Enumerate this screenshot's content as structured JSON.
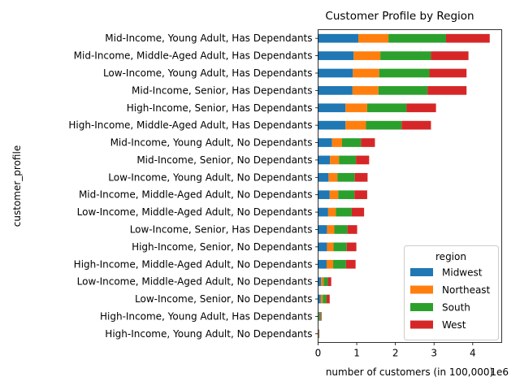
{
  "chart_data": {
    "type": "bar",
    "orientation": "horizontal",
    "stacked": true,
    "title": "Customer Profile by Region",
    "xlabel": "number of customers (in 100,000)",
    "ylabel": "customer_profile",
    "x_offset_label": "1e6",
    "xlim": [
      0,
      4.75
    ],
    "xticks": [
      0,
      1,
      2,
      3,
      4
    ],
    "grid": false,
    "legend": {
      "title": "region",
      "placement": "lower-right"
    },
    "categories": [
      "Mid-Income, Young Adult, Has Dependants",
      "Mid-Income, Middle-Aged Adult, Has Dependants",
      "Low-Income, Young Adult, Has Dependants",
      "Mid-Income, Senior, Has Dependants",
      "High-Income, Senior, Has Dependants",
      "High-Income, Middle-Aged Adult, Has Dependants",
      "Mid-Income, Young Adult, No Dependants",
      "Mid-Income, Senior, No Dependants",
      "Low-Income, Young Adult, No Dependants",
      "Mid-Income, Middle-Aged Adult, No Dependants",
      "Low-Income, Middle-Aged Adult, No Dependants",
      "Low-Income, Senior, Has Dependants",
      "High-Income, Senior, No Dependants",
      "High-Income, Middle-Aged Adult, No Dependants",
      "Low-Income, Middle-Aged Adult, No Dependants",
      "Low-Income, Senior, No Dependants",
      "High-Income, Young Adult, Has Dependants",
      "High-Income, Young Adult, No Dependants"
    ],
    "series": [
      {
        "name": "Midwest",
        "color": "#1f77b4",
        "values": [
          1.04,
          0.92,
          0.9,
          0.89,
          0.71,
          0.71,
          0.36,
          0.31,
          0.27,
          0.3,
          0.26,
          0.23,
          0.23,
          0.22,
          0.08,
          0.07,
          0.02,
          0.01
        ]
      },
      {
        "name": "Northeast",
        "color": "#ff7f0e",
        "values": [
          0.78,
          0.69,
          0.68,
          0.67,
          0.56,
          0.53,
          0.26,
          0.23,
          0.23,
          0.22,
          0.2,
          0.19,
          0.17,
          0.17,
          0.06,
          0.05,
          0.01,
          0.005
        ]
      },
      {
        "name": "South",
        "color": "#2ca02c",
        "values": [
          1.49,
          1.31,
          1.3,
          1.27,
          1.02,
          0.92,
          0.49,
          0.44,
          0.45,
          0.42,
          0.41,
          0.34,
          0.34,
          0.33,
          0.11,
          0.1,
          0.04,
          0.01
        ]
      },
      {
        "name": "West",
        "color": "#d62728",
        "values": [
          1.13,
          0.97,
          0.96,
          1.01,
          0.76,
          0.76,
          0.36,
          0.34,
          0.33,
          0.33,
          0.32,
          0.25,
          0.25,
          0.25,
          0.09,
          0.08,
          0.02,
          0.01
        ]
      }
    ]
  }
}
